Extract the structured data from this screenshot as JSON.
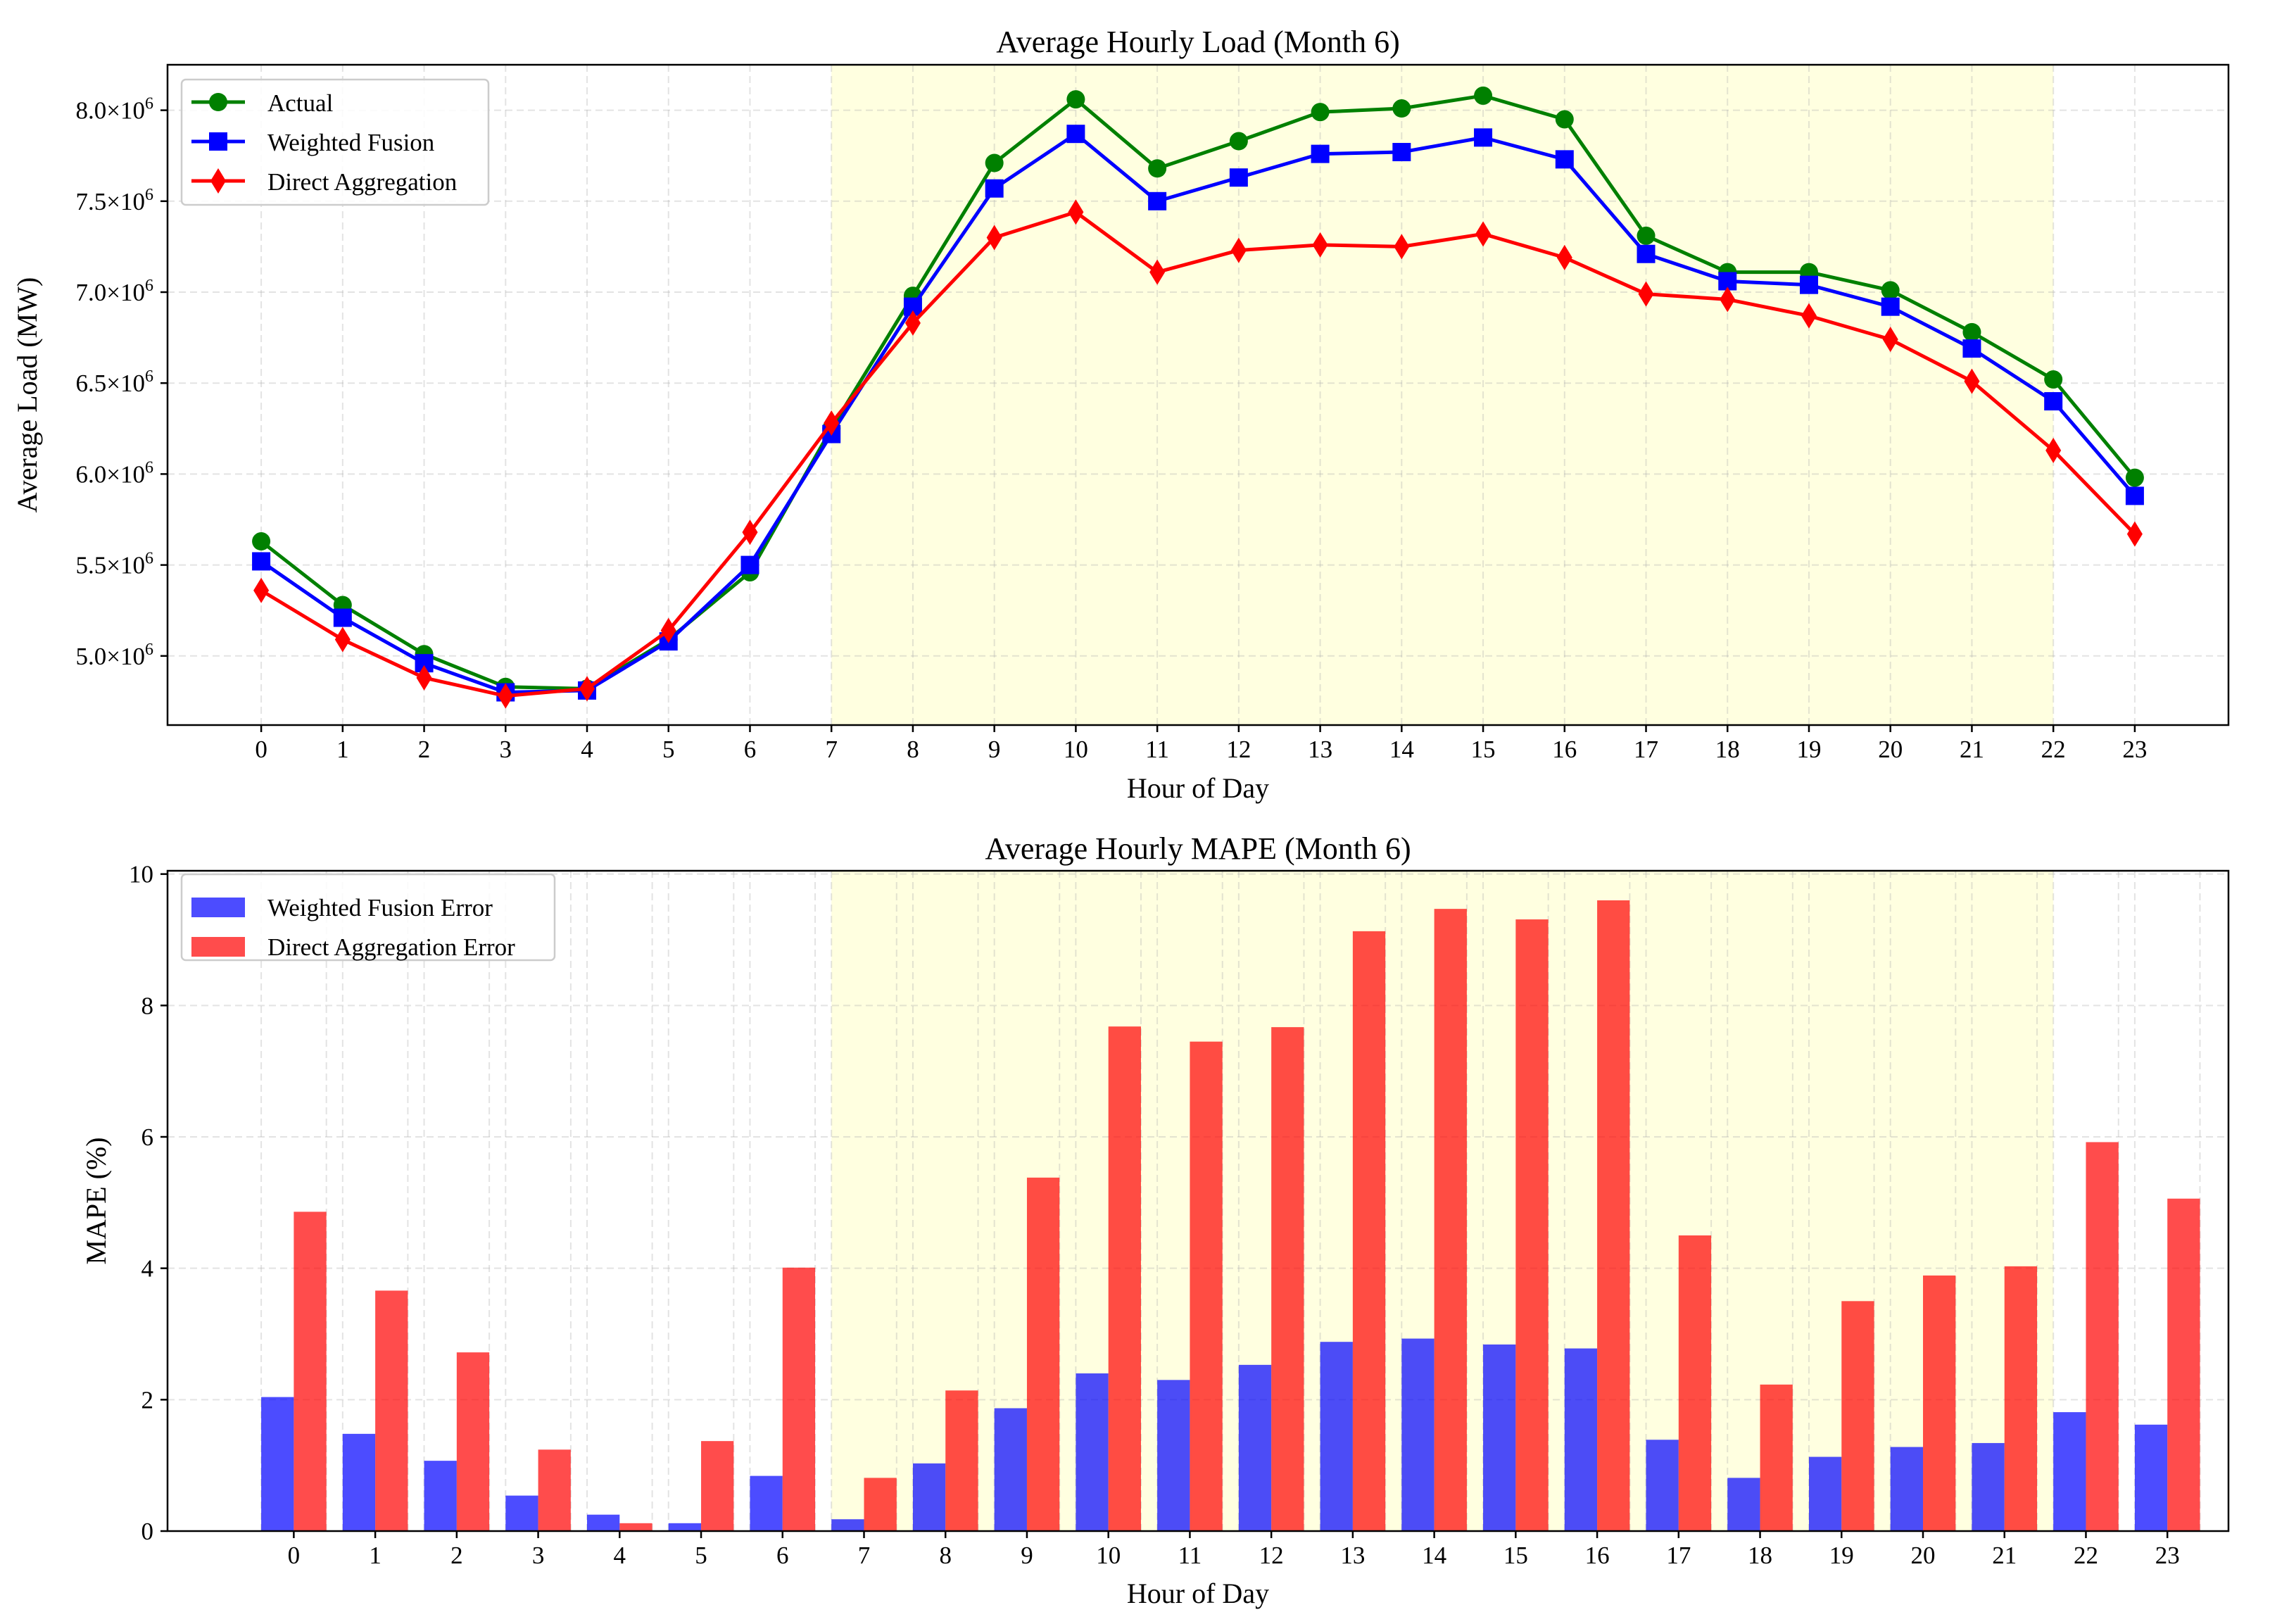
{
  "chart_data": [
    {
      "type": "line",
      "title": "Average Hourly Load (Month 6)",
      "xlabel": "Hour of Day",
      "ylabel": "Average Load (MW)",
      "x": [
        0,
        1,
        2,
        3,
        4,
        5,
        6,
        7,
        8,
        9,
        10,
        11,
        12,
        13,
        14,
        15,
        16,
        17,
        18,
        19,
        20,
        21,
        22,
        23
      ],
      "xlim": [
        -1.15,
        24.15
      ],
      "ylim": [
        4620000,
        8250000
      ],
      "yticks": [
        5000000,
        5500000,
        6000000,
        6500000,
        7000000,
        7500000,
        8000000
      ],
      "ytick_labels": [
        {
          "mant": "5.0",
          "exp": "6"
        },
        {
          "mant": "5.5",
          "exp": "6"
        },
        {
          "mant": "6.0",
          "exp": "6"
        },
        {
          "mant": "6.5",
          "exp": "6"
        },
        {
          "mant": "7.0",
          "exp": "6"
        },
        {
          "mant": "7.5",
          "exp": "6"
        },
        {
          "mant": "8.0",
          "exp": "6"
        }
      ],
      "times_symbol": "×10",
      "highlight_span": [
        7,
        22
      ],
      "grid": true,
      "legend_position": "upper-left",
      "series": [
        {
          "name": "Actual",
          "color": "#008000",
          "marker": "circle",
          "values": [
            5630000,
            5280000,
            5010000,
            4830000,
            4820000,
            5090000,
            5460000,
            6250000,
            6980000,
            7710000,
            8060000,
            7680000,
            7830000,
            7990000,
            8010000,
            8080000,
            7950000,
            7310000,
            7110000,
            7110000,
            7010000,
            6780000,
            6520000,
            5980000
          ]
        },
        {
          "name": "Weighted Fusion",
          "color": "#0000ff",
          "marker": "square",
          "values": [
            5520000,
            5210000,
            4960000,
            4800000,
            4810000,
            5080000,
            5500000,
            6220000,
            6920000,
            7570000,
            7870000,
            7500000,
            7630000,
            7760000,
            7770000,
            7850000,
            7730000,
            7210000,
            7060000,
            7040000,
            6920000,
            6690000,
            6400000,
            5880000
          ]
        },
        {
          "name": "Direct Aggregation",
          "color": "#ff0000",
          "marker": "diamond",
          "values": [
            5360000,
            5090000,
            4880000,
            4780000,
            4820000,
            5140000,
            5680000,
            6280000,
            6830000,
            7300000,
            7440000,
            7110000,
            7230000,
            7260000,
            7250000,
            7320000,
            7190000,
            6990000,
            6960000,
            6870000,
            6740000,
            6510000,
            6130000,
            5670000
          ]
        }
      ]
    },
    {
      "type": "bar",
      "title": "Average Hourly MAPE (Month 6)",
      "xlabel": "Hour of Day",
      "ylabel": "MAPE (%)",
      "categories": [
        "0",
        "1",
        "2",
        "3",
        "4",
        "5",
        "6",
        "7",
        "8",
        "9",
        "10",
        "11",
        "12",
        "13",
        "14",
        "15",
        "16",
        "17",
        "18",
        "19",
        "20",
        "21",
        "22",
        "23"
      ],
      "xlim": [
        -1.55,
        23.75
      ],
      "ylim": [
        0,
        10.05
      ],
      "yticks": [
        0,
        2,
        4,
        6,
        8,
        10
      ],
      "highlight_span": [
        6.6,
        21.6
      ],
      "grid": true,
      "legend_position": "upper-left",
      "series": [
        {
          "name": "Weighted Fusion Error",
          "color": "#0000ff",
          "opacity": 0.7,
          "values": [
            2.04,
            1.48,
            1.07,
            0.54,
            0.25,
            0.12,
            0.84,
            0.18,
            1.03,
            1.87,
            2.4,
            2.3,
            2.53,
            2.88,
            2.93,
            2.84,
            2.78,
            1.39,
            0.81,
            1.13,
            1.28,
            1.34,
            1.81,
            1.62
          ]
        },
        {
          "name": "Direct Aggregation Error",
          "color": "#ff0000",
          "opacity": 0.7,
          "values": [
            4.86,
            3.66,
            2.72,
            1.24,
            0.12,
            1.37,
            4.01,
            0.81,
            2.14,
            5.38,
            7.68,
            7.45,
            7.67,
            9.13,
            9.47,
            9.31,
            9.6,
            4.5,
            2.23,
            3.5,
            3.89,
            4.03,
            5.92,
            5.06
          ]
        }
      ]
    }
  ]
}
